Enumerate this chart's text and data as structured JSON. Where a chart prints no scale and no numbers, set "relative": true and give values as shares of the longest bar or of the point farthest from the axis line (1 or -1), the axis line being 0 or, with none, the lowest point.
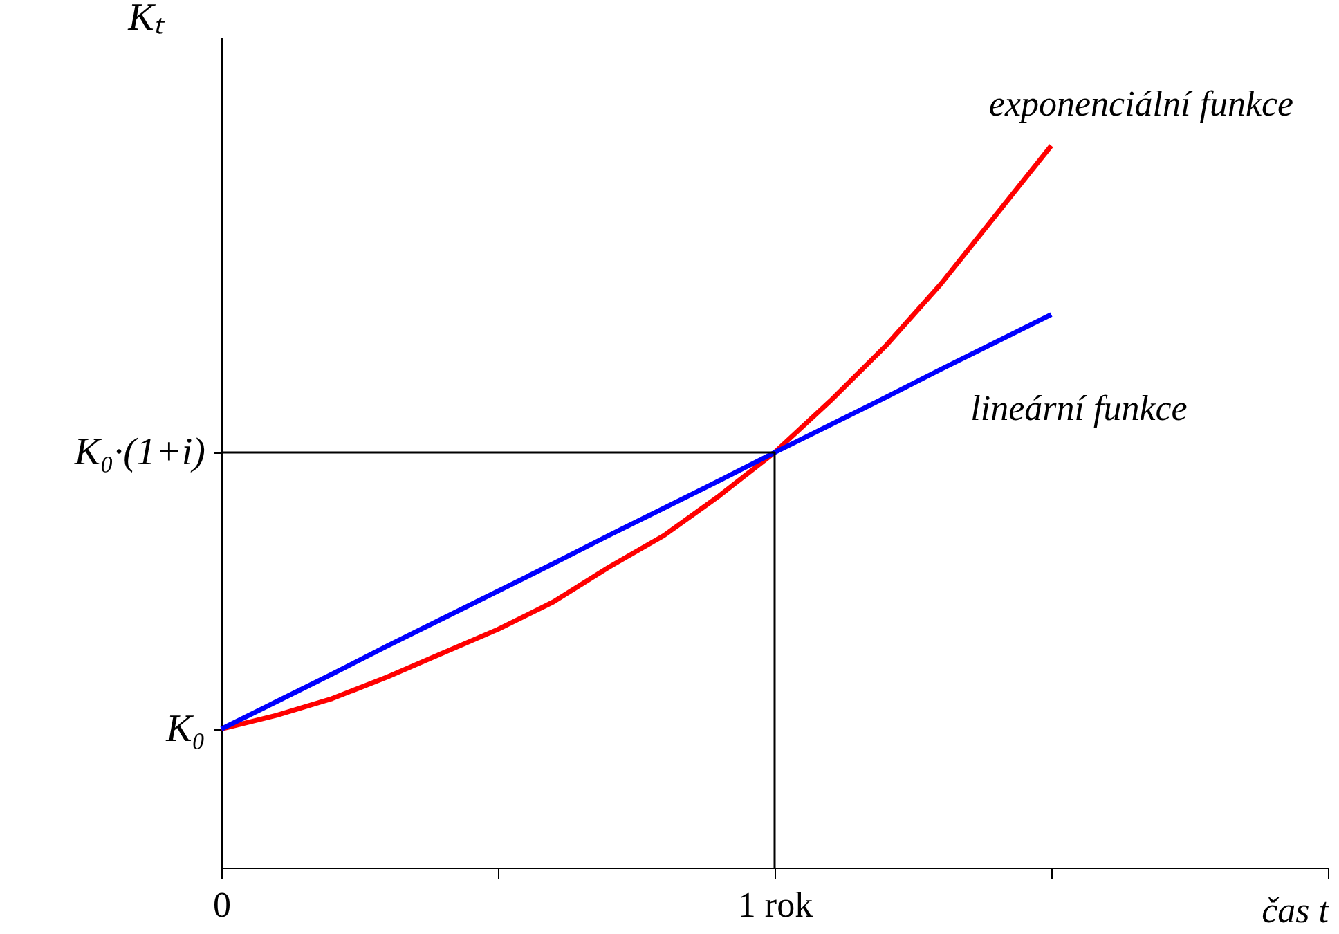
{
  "chart_data": {
    "type": "line",
    "relative": true,
    "xlabel": "čas t",
    "ylabel": "Kₜ",
    "categories": [
      "0",
      null,
      null,
      null,
      null,
      null,
      null,
      null,
      null,
      null,
      "1 rok",
      null,
      null,
      null,
      null,
      null,
      null,
      null,
      null,
      null,
      null
    ],
    "series": [
      {
        "name": "exponenciální funkce",
        "color": "#ff0000",
        "values": [
          0.192,
          0.211,
          0.234,
          0.264,
          0.297,
          0.33,
          0.368,
          0.416,
          0.46,
          0.515,
          0.575,
          0.646,
          0.722,
          0.808,
          0.904,
          1.0,
          null,
          null,
          null,
          null,
          null
        ]
      },
      {
        "name": "lineární funkce",
        "color": "#0000ff",
        "values": [
          0.192,
          0.23,
          0.268,
          0.307,
          0.345,
          0.383,
          0.421,
          0.46,
          0.498,
          0.536,
          0.575,
          0.613,
          0.651,
          0.69,
          0.728,
          0.766,
          null,
          null,
          null,
          null,
          null
        ]
      }
    ],
    "annotations": [
      {
        "text": "K₀",
        "x": "0",
        "y": 0.192
      },
      {
        "text": "K₀·(1+i)",
        "x": "0",
        "y": 0.575
      }
    ],
    "ref_lines": [
      {
        "axis": "y",
        "value": 0.575,
        "color": "#000000"
      },
      {
        "axis": "x",
        "value": "1 rok",
        "color": "#000000"
      }
    ],
    "legend": false,
    "marker": "none",
    "line_style": "solid"
  }
}
